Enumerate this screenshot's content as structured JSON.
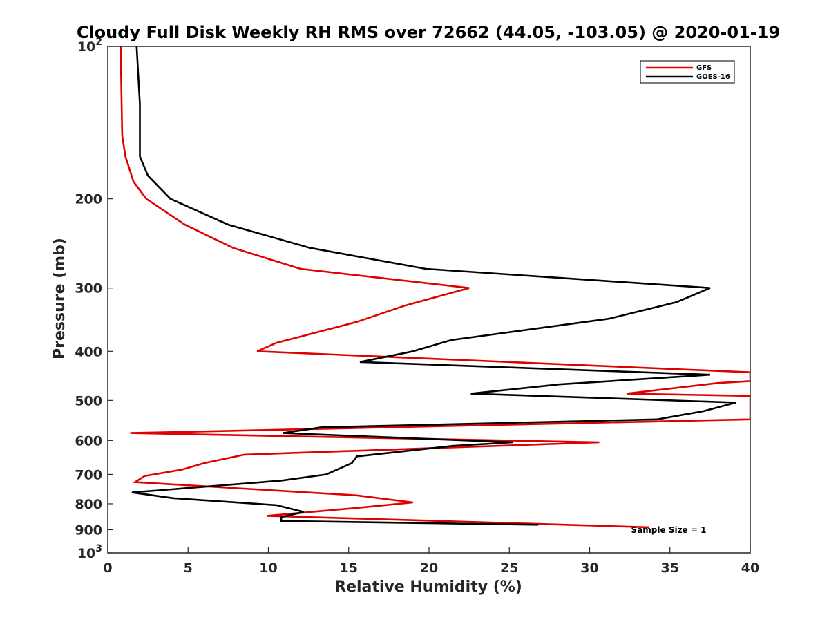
{
  "chart_data": {
    "type": "line",
    "title": "Cloudy Full Disk Weekly RH RMS over 72662 (44.05, -103.05) @ 2020-01-19",
    "xlabel": "Relative Humidity (%)",
    "ylabel": "Pressure (mb)",
    "xlim": [
      0,
      40
    ],
    "ylim": [
      100,
      1000
    ],
    "y_scale": "log",
    "y_reversed": true,
    "grid": false,
    "legend_position": "top-right",
    "annotation": "Sample Size = 1",
    "x_ticks": [
      0,
      5,
      10,
      15,
      20,
      25,
      30,
      35,
      40
    ],
    "x_tick_labels": [
      "0",
      "5",
      "10",
      "15",
      "20",
      "25",
      "30",
      "35",
      "40"
    ],
    "y_ticks": [
      100,
      200,
      300,
      400,
      500,
      600,
      700,
      800,
      900,
      1000
    ],
    "y_tick_labels": [
      {
        "base": "10",
        "exp": "2"
      },
      {
        "base": "200",
        "exp": ""
      },
      {
        "base": "300",
        "exp": ""
      },
      {
        "base": "400",
        "exp": ""
      },
      {
        "base": "500",
        "exp": ""
      },
      {
        "base": "600",
        "exp": ""
      },
      {
        "base": "700",
        "exp": ""
      },
      {
        "base": "800",
        "exp": ""
      },
      {
        "base": "900",
        "exp": ""
      },
      {
        "base": "10",
        "exp": "3"
      }
    ],
    "series": [
      {
        "name": "GFS",
        "color": "#e00000",
        "points": [
          [
            0.8,
            100
          ],
          [
            0.9,
            150
          ],
          [
            1.1,
            165
          ],
          [
            1.6,
            185
          ],
          [
            2.4,
            200
          ],
          [
            4.8,
            225
          ],
          [
            7.8,
            250
          ],
          [
            12.0,
            275
          ],
          [
            22.5,
            300
          ],
          [
            18.5,
            325
          ],
          [
            15.5,
            350
          ],
          [
            10.5,
            385
          ],
          [
            9.3,
            400
          ],
          [
            40,
            440
          ],
          [
            40,
            458
          ],
          [
            38.0,
            462
          ],
          [
            32.3,
            485
          ],
          [
            40,
            490
          ],
          [
            40,
            545
          ],
          [
            1.4,
            580
          ],
          [
            30.6,
            605
          ],
          [
            8.5,
            640
          ],
          [
            6.0,
            665
          ],
          [
            4.6,
            685
          ],
          [
            2.3,
            705
          ],
          [
            1.7,
            725
          ],
          [
            15.5,
            770
          ],
          [
            19.0,
            795
          ],
          [
            15.5,
            815
          ],
          [
            9.9,
            845
          ],
          [
            33.7,
            890
          ]
        ]
      },
      {
        "name": "GOES-16",
        "color": "#000000",
        "points": [
          [
            1.8,
            100
          ],
          [
            2.0,
            130
          ],
          [
            2.0,
            165
          ],
          [
            2.5,
            180
          ],
          [
            3.9,
            200
          ],
          [
            7.5,
            225
          ],
          [
            12.6,
            250
          ],
          [
            19.8,
            275
          ],
          [
            37.5,
            300
          ],
          [
            35.4,
            320
          ],
          [
            31.2,
            345
          ],
          [
            21.4,
            380
          ],
          [
            19.0,
            400
          ],
          [
            15.7,
            420
          ],
          [
            37.5,
            445
          ],
          [
            28.1,
            465
          ],
          [
            22.6,
            485
          ],
          [
            39.1,
            505
          ],
          [
            37.1,
            525
          ],
          [
            34.2,
            545
          ],
          [
            13.3,
            565
          ],
          [
            10.9,
            580
          ],
          [
            25.2,
            605
          ],
          [
            21.5,
            615
          ],
          [
            15.5,
            645
          ],
          [
            15.2,
            665
          ],
          [
            13.6,
            700
          ],
          [
            10.8,
            720
          ],
          [
            1.5,
            760
          ],
          [
            4.1,
            780
          ],
          [
            10.5,
            805
          ],
          [
            12.2,
            830
          ],
          [
            10.8,
            850
          ],
          [
            10.8,
            865
          ],
          [
            26.8,
            880
          ]
        ]
      }
    ]
  }
}
